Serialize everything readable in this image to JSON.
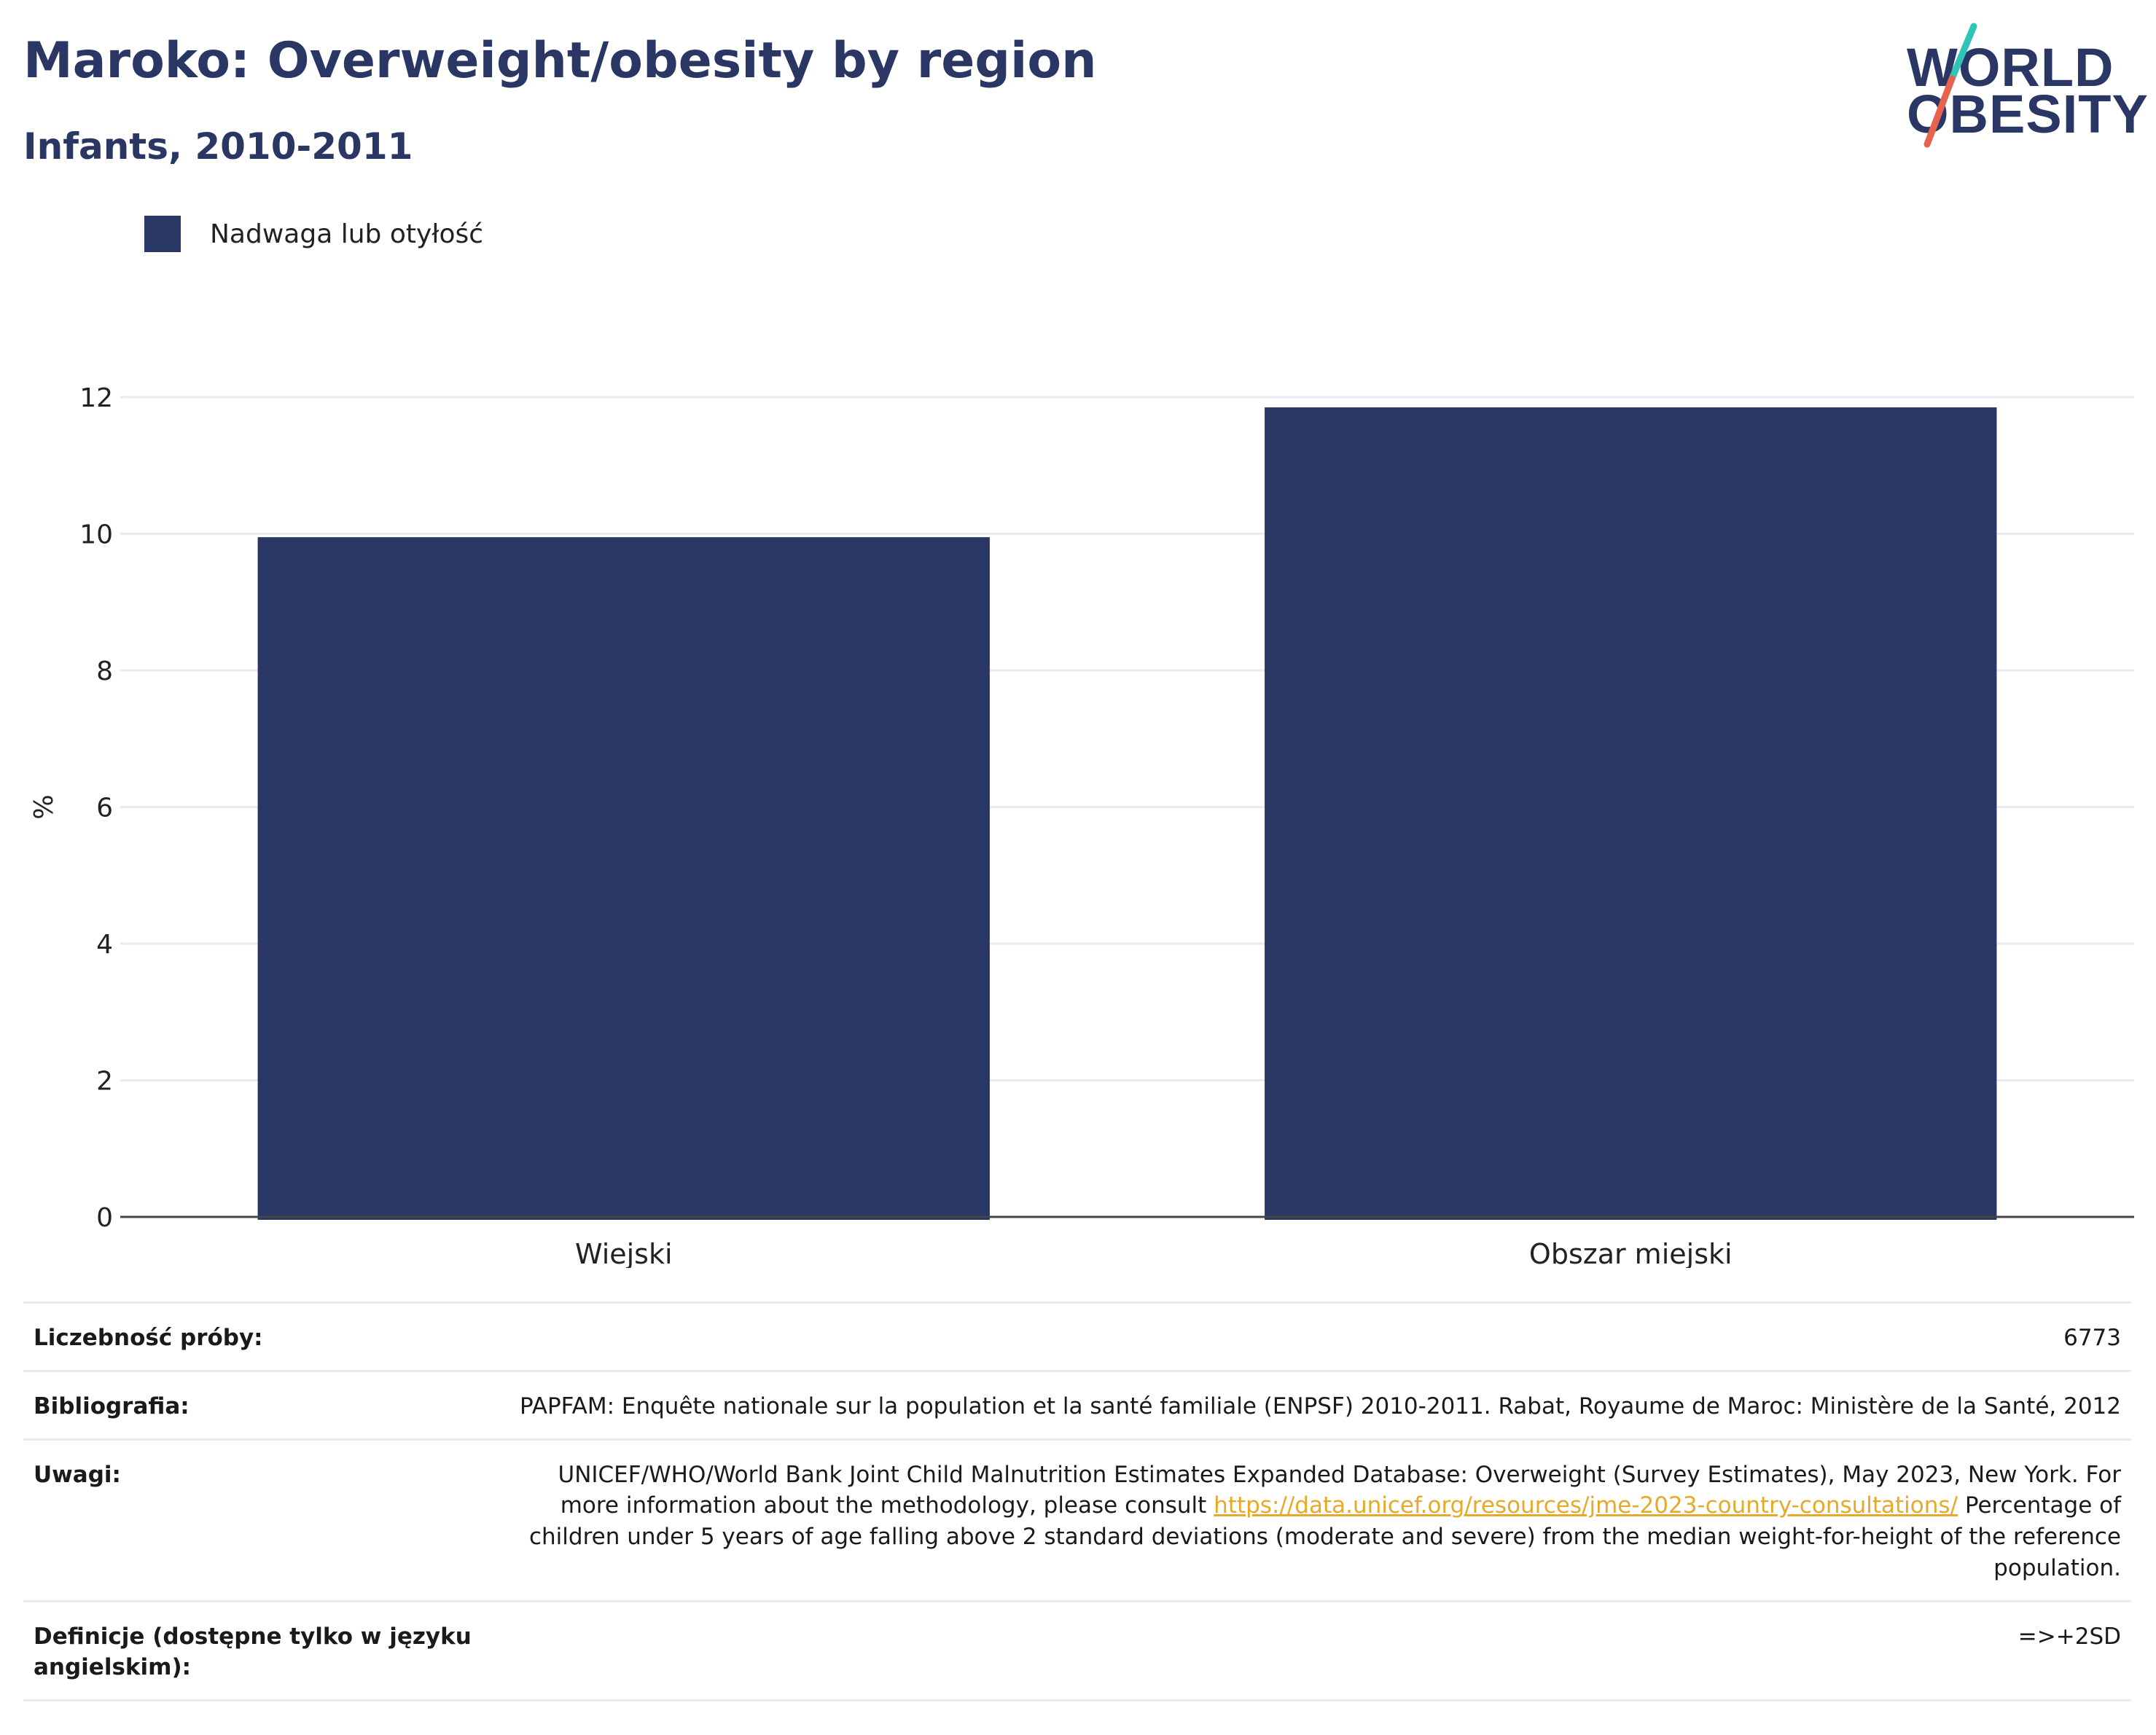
{
  "title": "Maroko: Overweight/obesity by region",
  "subtitle": "Infants, 2010-2011",
  "logo": {
    "line1": "WORLD",
    "line2": "OBESITY"
  },
  "colors": {
    "bar": "#2a3663",
    "title": "#2a3663",
    "grid": "#e9ebf2",
    "link": "#e7a92a",
    "logo_teal": "#2ec4b6",
    "logo_red": "#e8624f"
  },
  "legend": {
    "label": "Nadwaga lub otyłość"
  },
  "chart_data": {
    "type": "bar",
    "categories": [
      "Wiejski",
      "Obszar miejski"
    ],
    "series": [
      {
        "name": "Nadwaga lub otyłość",
        "values": [
          9.95,
          11.85
        ]
      }
    ],
    "ylabel": "%",
    "xlabel": "",
    "ylim": [
      0,
      12
    ],
    "yticks": [
      0,
      2,
      4,
      6,
      8,
      10,
      12
    ],
    "grid": true,
    "legend_position": "top-left"
  },
  "info": {
    "sample_size": {
      "label": "Liczebność próby:",
      "value": "6773"
    },
    "bibliography": {
      "label": "Bibliografia:",
      "value": "PAPFAM: Enquête nationale sur la population et la santé familiale (ENPSF) 2010-2011. Rabat, Royaume de Maroc: Ministère de la Santé, 2012"
    },
    "notes": {
      "label": "Uwagi:",
      "text_before": "UNICEF/WHO/World Bank Joint Child Malnutrition Estimates Expanded Database: Overweight (Survey Estimates), May 2023, New York. For more information about the methodology, please consult ",
      "link": "https://data.unicef.org/resources/jme-2023-country-consultations/",
      "text_after": " Percentage of children under 5 years of age falling above 2 standard deviations (moderate and severe) from the median weight-for-height of the reference population."
    },
    "definitions": {
      "label": "Definicje (dostępne tylko w języku angielskim):",
      "value": "=>+2SD"
    }
  }
}
